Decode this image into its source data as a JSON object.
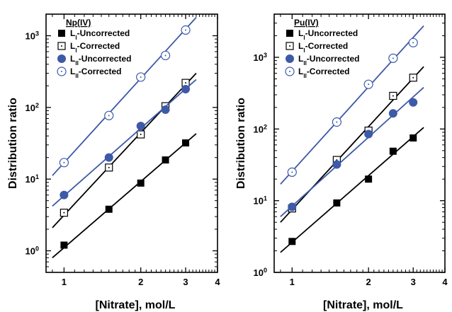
{
  "chart_data": [
    {
      "type": "scatter",
      "title": "Np(IV)",
      "xlabel": "[Nitrate], mol/L",
      "ylabel": "Distribution ratio",
      "xscale": "log",
      "yscale": "log",
      "xlim": [
        0.85,
        4
      ],
      "ylim": [
        0.5,
        2000
      ],
      "xticks": [
        1,
        2,
        3,
        4
      ],
      "ytick_labels": [
        "10^0",
        "10^1",
        "10^2",
        "10^3"
      ],
      "yticks": [
        1,
        10,
        100,
        1000
      ],
      "grid": false,
      "legend_position": "top-left",
      "x": [
        1,
        1.5,
        2,
        2.5,
        3
      ],
      "series": [
        {
          "name": "LI-Uncorrected",
          "marker": "filled-square",
          "color": "#000000",
          "values": [
            1.2,
            3.8,
            8.8,
            18.5,
            32
          ],
          "fit": {
            "x": [
              0.9,
              3.3
            ],
            "y": [
              0.8,
              43
            ]
          }
        },
        {
          "name": "LI-Corrected",
          "marker": "open-square",
          "color": "#000000",
          "values": [
            3.4,
            14.5,
            42,
            104,
            220
          ],
          "fit": {
            "x": [
              0.9,
              3.3
            ],
            "y": [
              2.1,
              300
            ]
          }
        },
        {
          "name": "LII-Uncorrected",
          "marker": "filled-circle",
          "color": "#3d5aa8",
          "values": [
            6,
            20,
            55,
            93,
            180
          ],
          "fit": {
            "x": [
              0.9,
              3.3
            ],
            "y": [
              4.2,
              245
            ]
          }
        },
        {
          "name": "LII-Corrected",
          "marker": "open-circle",
          "color": "#3d5aa8",
          "values": [
            17,
            77,
            265,
            530,
            1200
          ],
          "fit": {
            "x": [
              0.9,
              3.3
            ],
            "y": [
              11.2,
              1800
            ]
          }
        }
      ]
    },
    {
      "type": "scatter",
      "title": "Pu(IV)",
      "xlabel": "[Nitrate], mol/L",
      "ylabel": "Distribution ratio",
      "xscale": "log",
      "yscale": "log",
      "xlim": [
        0.85,
        4
      ],
      "ylim": [
        1,
        4000
      ],
      "xticks": [
        1,
        2,
        3,
        4
      ],
      "ytick_labels": [
        "10^0",
        "10^1",
        "10^2",
        "10^3"
      ],
      "yticks": [
        1,
        10,
        100,
        1000
      ],
      "grid": false,
      "legend_position": "top-left",
      "x": [
        1,
        1.5,
        2,
        2.5,
        3
      ],
      "series": [
        {
          "name": "LI-Uncorrected",
          "marker": "filled-square",
          "color": "#000000",
          "values": [
            2.7,
            9.3,
            20,
            49,
            75
          ],
          "fit": {
            "x": [
              0.9,
              3.3
            ],
            "y": [
              1.9,
              105
            ]
          }
        },
        {
          "name": "LI-Corrected",
          "marker": "open-square",
          "color": "#000000",
          "values": [
            7.8,
            37,
            95,
            290,
            520
          ],
          "fit": {
            "x": [
              0.9,
              3.3
            ],
            "y": [
              5,
              740
            ]
          }
        },
        {
          "name": "LII-Uncorrected",
          "marker": "filled-circle",
          "color": "#3d5aa8",
          "values": [
            8.2,
            32,
            85,
            165,
            235
          ],
          "fit": {
            "x": [
              0.9,
              3.3
            ],
            "y": [
              6,
              380
            ]
          }
        },
        {
          "name": "LII-Corrected",
          "marker": "open-circle",
          "color": "#3d5aa8",
          "values": [
            25,
            125,
            420,
            970,
            1600
          ],
          "fit": {
            "x": [
              0.9,
              3.3
            ],
            "y": [
              17,
              2750
            ]
          }
        }
      ]
    }
  ]
}
